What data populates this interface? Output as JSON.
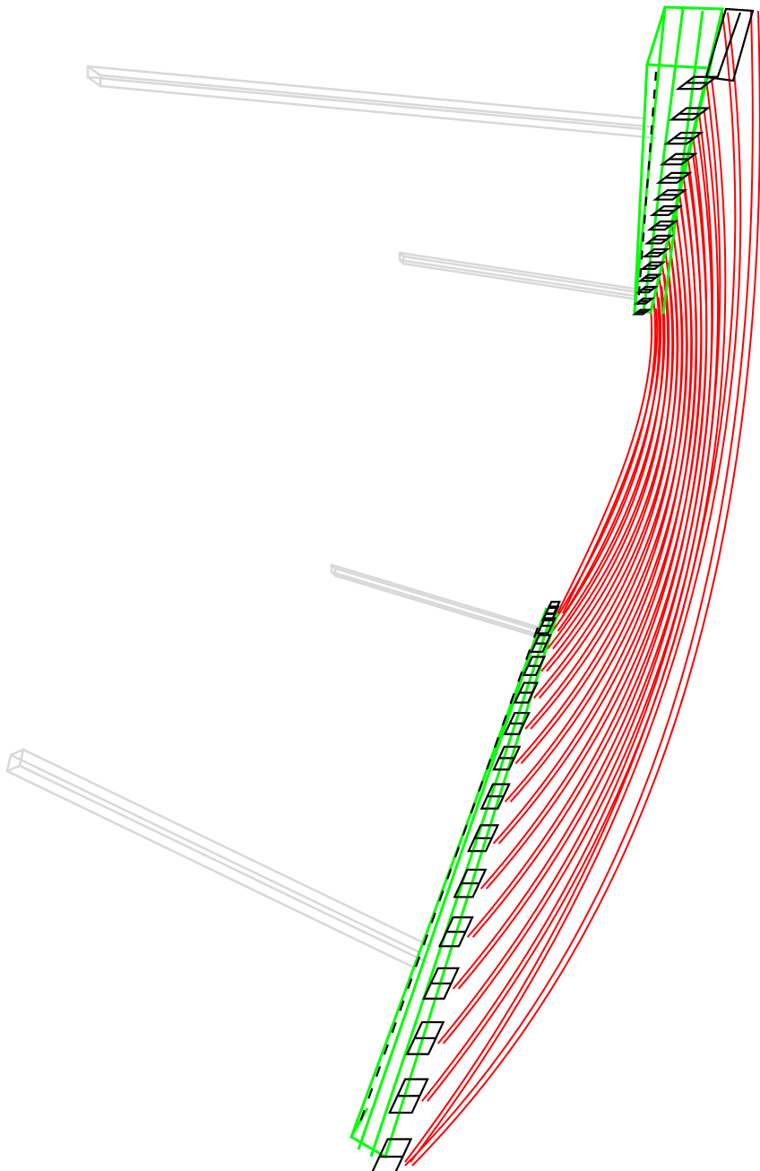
{
  "colors": {
    "background": "#ffffff",
    "support": "#d8d8d8",
    "panel": "#00ff00",
    "connector": "#ff0000",
    "clamp": "#000000"
  },
  "structure": {
    "upper_panel_conductor_count": 16,
    "lower_panel_conductor_count": 16,
    "support_arm_count": 4
  }
}
